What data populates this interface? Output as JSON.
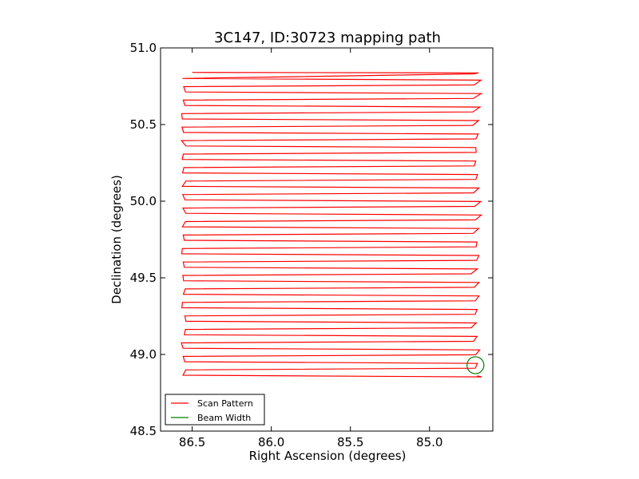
{
  "chart_data": {
    "type": "line",
    "title": "3C147, ID:30723 mapping path",
    "xlabel": "Right Ascension (degrees)",
    "ylabel": "Declination (degrees)",
    "xlim": [
      86.7,
      84.6
    ],
    "ylim": [
      48.5,
      51.0
    ],
    "x_inverted": true,
    "xticks": [
      86.5,
      86.0,
      85.5,
      85.0
    ],
    "xtick_labels": [
      "86.5",
      "86.0",
      "85.5",
      "85.0"
    ],
    "yticks": [
      48.5,
      49.0,
      49.5,
      50.0,
      50.5,
      51.0
    ],
    "ytick_labels": [
      "48.5",
      "49.0",
      "49.5",
      "50.0",
      "50.5",
      "51.0"
    ],
    "grid": false,
    "legend_position": "lower-left",
    "colors": {
      "scan": "#ff0000",
      "beam": "#008000"
    },
    "series": [
      {
        "name": "Scan Pattern",
        "scan": {
          "ra_left": 86.56,
          "ra_right": 84.69,
          "dec_start": 50.84,
          "dec_end": 48.86,
          "rows": 46,
          "row_ra_start_left": 86.5,
          "row_ra_end_right": 84.7
        }
      },
      {
        "name": "Beam Width",
        "circle": {
          "ra": 84.71,
          "dec": 48.93,
          "radius_deg": 0.055
        }
      }
    ]
  }
}
